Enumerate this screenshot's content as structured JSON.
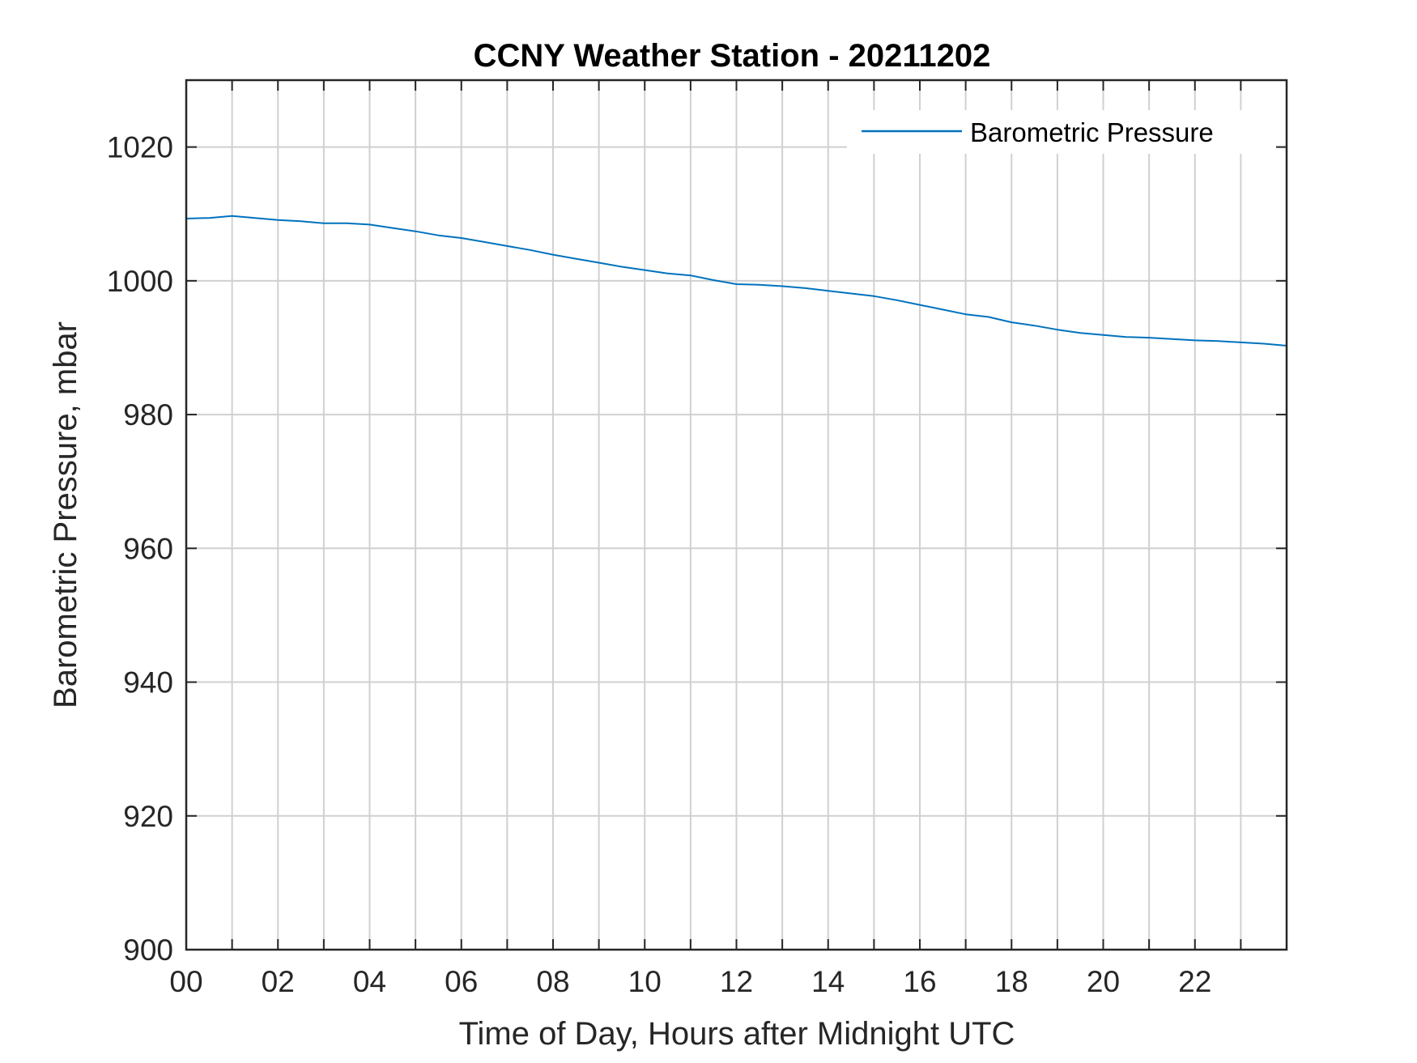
{
  "chart_data": {
    "type": "line",
    "title": "CCNY Weather Station - 20211202",
    "xlabel": "Time of Day, Hours after Midnight UTC",
    "ylabel": "Barometric Pressure, mbar",
    "xlim": [
      0,
      24
    ],
    "ylim": [
      900,
      1030
    ],
    "x_ticks": [
      0,
      2,
      4,
      6,
      8,
      10,
      12,
      14,
      16,
      18,
      20,
      22
    ],
    "x_tick_labels": [
      "00",
      "02",
      "04",
      "06",
      "08",
      "10",
      "12",
      "14",
      "16",
      "18",
      "20",
      "22"
    ],
    "y_ticks": [
      900,
      920,
      940,
      960,
      980,
      1000,
      1020
    ],
    "y_tick_labels": [
      "900",
      "920",
      "940",
      "960",
      "980",
      "1000",
      "1020"
    ],
    "grid": true,
    "legend_position": "top-right",
    "series": [
      {
        "name": "Barometric Pressure",
        "color": "#0072bd",
        "x": [
          0,
          0.5,
          1.0,
          1.5,
          2.0,
          2.5,
          3.0,
          3.5,
          4.0,
          4.5,
          5.0,
          5.5,
          6.0,
          6.5,
          7.0,
          7.5,
          8.0,
          8.5,
          9.0,
          9.5,
          10.0,
          10.5,
          11.0,
          11.5,
          12.0,
          12.5,
          13.0,
          13.5,
          14.0,
          14.5,
          15.0,
          15.5,
          16.0,
          16.5,
          17.0,
          17.5,
          18.0,
          18.5,
          19.0,
          19.5,
          20.0,
          20.5,
          21.0,
          21.5,
          22.0,
          22.5,
          23.0,
          23.5,
          24.0
        ],
        "values": [
          1009.3,
          1009.4,
          1009.7,
          1009.4,
          1009.1,
          1008.9,
          1008.6,
          1008.6,
          1008.4,
          1007.9,
          1007.4,
          1006.8,
          1006.4,
          1005.8,
          1005.2,
          1004.6,
          1003.9,
          1003.3,
          1002.7,
          1002.1,
          1001.6,
          1001.1,
          1000.8,
          1000.1,
          999.5,
          999.4,
          999.2,
          998.9,
          998.5,
          998.1,
          997.7,
          997.1,
          996.4,
          995.7,
          995.0,
          994.6,
          993.8,
          993.3,
          992.7,
          992.2,
          991.9,
          991.6,
          991.5,
          991.3,
          991.1,
          991.0,
          990.8,
          990.6,
          990.3
        ]
      }
    ]
  }
}
